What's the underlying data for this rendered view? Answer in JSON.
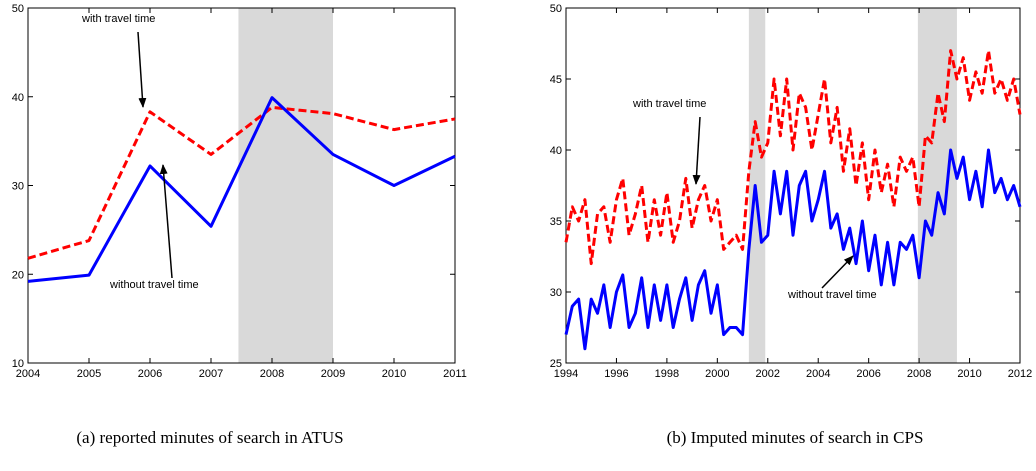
{
  "chart_data": [
    {
      "type": "line",
      "x": [
        2004,
        2005,
        2006,
        2007,
        2008,
        2009,
        2010,
        2011
      ],
      "series": [
        {
          "name": "with travel time",
          "color": "#ff0000",
          "dash": true,
          "values": [
            21.8,
            23.8,
            38.3,
            33.5,
            38.8,
            38.1,
            36.3,
            37.5
          ]
        },
        {
          "name": "without travel time",
          "color": "#0000ff",
          "dash": false,
          "values": [
            19.2,
            19.9,
            32.2,
            25.4,
            39.9,
            33.5,
            30.0,
            33.3
          ]
        }
      ],
      "shaded": [
        [
          2007.45,
          2009
        ]
      ],
      "xlim": [
        2004,
        2011
      ],
      "ylim": [
        10,
        50
      ],
      "xticks": [
        2004,
        2005,
        2006,
        2007,
        2008,
        2009,
        2010,
        2011
      ],
      "yticks": [
        10,
        20,
        30,
        40,
        50
      ],
      "caption": "(a) reported minutes of search in ATUS"
    },
    {
      "type": "line",
      "x": [
        1994,
        1994.25,
        1994.5,
        1994.75,
        1995,
        1995.25,
        1995.5,
        1995.75,
        1996,
        1996.25,
        1996.5,
        1996.75,
        1997,
        1997.25,
        1997.5,
        1997.75,
        1998,
        1998.25,
        1998.5,
        1998.75,
        1999,
        1999.25,
        1999.5,
        1999.75,
        2000,
        2000.25,
        2000.5,
        2000.75,
        2001,
        2001.25,
        2001.5,
        2001.75,
        2002,
        2002.25,
        2002.5,
        2002.75,
        2003,
        2003.25,
        2003.5,
        2003.75,
        2004,
        2004.25,
        2004.5,
        2004.75,
        2005,
        2005.25,
        2005.5,
        2005.75,
        2006,
        2006.25,
        2006.5,
        2006.75,
        2007,
        2007.25,
        2007.5,
        2007.75,
        2008,
        2008.25,
        2008.5,
        2008.75,
        2009,
        2009.25,
        2009.5,
        2009.75,
        2010,
        2010.25,
        2010.5,
        2010.75,
        2011,
        2011.25,
        2011.5,
        2011.75,
        2012
      ],
      "series": [
        {
          "name": "with travel time",
          "color": "#ff0000",
          "dash": true,
          "values": [
            33.5,
            36.0,
            35.0,
            36.5,
            32.0,
            35.5,
            36.0,
            33.5,
            36.5,
            38.0,
            34.0,
            35.5,
            37.5,
            33.5,
            36.5,
            34.0,
            37.0,
            33.5,
            35.0,
            38.0,
            34.5,
            36.5,
            37.5,
            35.0,
            36.5,
            33.0,
            33.5,
            34.0,
            33.0,
            38.5,
            42.0,
            39.5,
            40.5,
            45.0,
            41.0,
            45.0,
            40.0,
            44.0,
            43.0,
            40.0,
            42.5,
            45.0,
            40.5,
            43.0,
            38.5,
            41.5,
            37.5,
            40.5,
            36.5,
            40.0,
            37.0,
            39.0,
            36.0,
            39.5,
            38.5,
            39.5,
            36.0,
            41.0,
            40.5,
            44.0,
            42.0,
            47.0,
            45.0,
            46.5,
            43.5,
            45.5,
            44.0,
            47.0,
            44.0,
            45.0,
            43.5,
            45.0,
            42.5
          ]
        },
        {
          "name": "without travel time",
          "color": "#0000ff",
          "dash": false,
          "values": [
            27.0,
            29.0,
            29.5,
            26.0,
            29.5,
            28.5,
            30.5,
            27.5,
            30.0,
            31.2,
            27.5,
            28.5,
            31.0,
            27.5,
            30.5,
            28.0,
            30.5,
            27.5,
            29.5,
            31.0,
            28.0,
            30.5,
            31.5,
            28.5,
            30.5,
            27.0,
            27.5,
            27.5,
            27.0,
            33.0,
            37.5,
            33.5,
            34.0,
            38.5,
            35.5,
            38.5,
            34.0,
            37.5,
            38.5,
            35.0,
            36.5,
            38.5,
            34.5,
            35.5,
            33.0,
            34.5,
            32.0,
            35.0,
            31.5,
            34.0,
            30.5,
            33.5,
            30.5,
            33.5,
            33.0,
            34.0,
            31.0,
            35.0,
            34.0,
            37.0,
            35.5,
            40.0,
            38.0,
            39.5,
            36.5,
            38.5,
            36.0,
            40.0,
            37.0,
            38.0,
            36.5,
            37.5,
            36.0
          ]
        }
      ],
      "shaded": [
        [
          2001.25,
          2001.9
        ],
        [
          2007.95,
          2009.5
        ]
      ],
      "xlim": [
        1994,
        2012
      ],
      "ylim": [
        25,
        50
      ],
      "xticks": [
        1994,
        1996,
        1998,
        2000,
        2002,
        2004,
        2006,
        2008,
        2010,
        2012
      ],
      "yticks": [
        25,
        30,
        35,
        40,
        45,
        50
      ],
      "caption": "(b) Imputed minutes of search in CPS"
    }
  ]
}
